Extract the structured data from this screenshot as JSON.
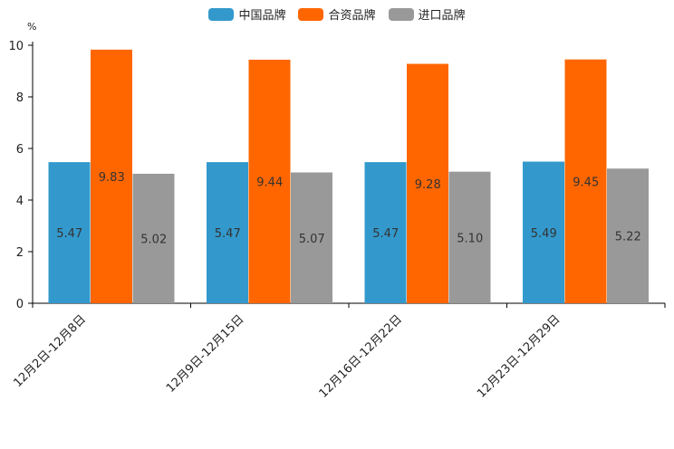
{
  "chart_data": {
    "type": "bar",
    "unit": "%",
    "categories": [
      "12月2日-12月8日",
      "12月9日-12月15日",
      "12月16日-12月22日",
      "12月23日-12月29日"
    ],
    "series": [
      {
        "name": "中国品牌",
        "color": "#3399cc",
        "values": [
          5.47,
          5.47,
          5.47,
          5.49
        ],
        "labels": [
          "5.47",
          "5.47",
          "5.47",
          "5.49"
        ]
      },
      {
        "name": "合资品牌",
        "color": "#ff6600",
        "values": [
          9.83,
          9.44,
          9.28,
          9.45
        ],
        "labels": [
          "9.83",
          "9.44",
          "9.28",
          "9.45"
        ]
      },
      {
        "name": "进口品牌",
        "color": "#999999",
        "values": [
          5.02,
          5.07,
          5.1,
          5.22
        ],
        "labels": [
          "5.02",
          "5.07",
          "5.10",
          "5.22"
        ]
      }
    ],
    "ylim": [
      0,
      10
    ],
    "yticks": [
      "0",
      "2",
      "4",
      "6",
      "8",
      "10"
    ],
    "ylabel": "%",
    "legend_position": "top-center"
  }
}
